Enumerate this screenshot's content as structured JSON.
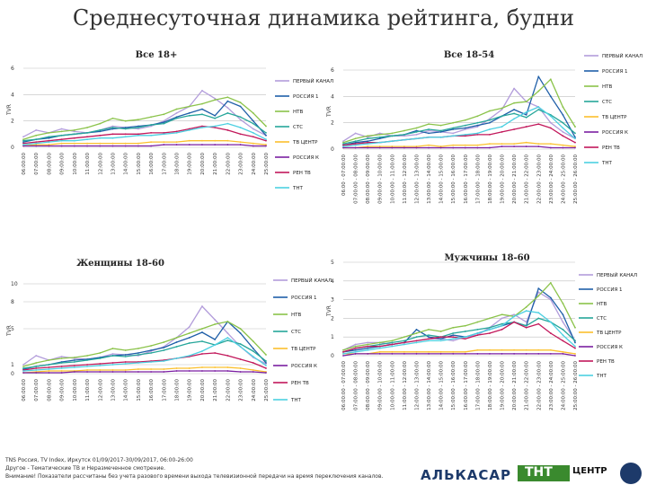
{
  "page_title": "Среднесуточная динамика рейтинга, будни",
  "colors": {
    "Первый канал": "#b39ddb",
    "Россия 1": "#1f5fa8",
    "НТВ": "#8bc34a",
    "СТС": "#26a69a",
    "ТВ Центр": "#fbc02d",
    "Россия К": "#7b1fa2",
    "Рен ТВ": "#c2185b",
    "ТНТ": "#4dd0e1"
  },
  "footer": {
    "line1": "TNS Россия, TV Index, Иркутск 01/09/2017-30/09/2017, 06:00-26:00",
    "line2": "Другое - Тематические ТВ и Неразмеченное смотрение.",
    "line3": "Внимание! Показатели рассчитаны без учета разового времени выхода телевизионной передачи на время переключения каналов."
  },
  "logos": {
    "alkasar": "АЛЬКАСАР",
    "tnt": "ТНТ",
    "centr": "ЦЕНТР"
  },
  "chart_data": [
    {
      "type": "line",
      "title": "Все 18+",
      "ylabel": "TVR",
      "ylim": [
        0,
        6
      ],
      "yticks": [
        "0",
        "2",
        "4",
        "6"
      ],
      "categories": [
        "06:00:00",
        "07:00:00",
        "08:00:00",
        "09:00:00",
        "10:00:00",
        "11:00:00",
        "12:00:00",
        "13:00:00",
        "14:00:00",
        "15:00:00",
        "16:00:00",
        "17:00:00",
        "18:00:00",
        "19:00:00",
        "20:00:00",
        "21:00:00",
        "22:00:00",
        "23:00:00",
        "24:00:00",
        "25:00:00"
      ],
      "legend": [
        "ПЕРВЫЙ КАНАЛ",
        "РОССИЯ 1",
        "НТВ",
        "СТС",
        "ТВ ЦЕНТР",
        "РОССИЯ К",
        "РЕН ТВ",
        "ТНТ"
      ],
      "series": [
        {
          "name": "Первый канал",
          "values": [
            0.8,
            1.3,
            1.1,
            1.4,
            1.2,
            1.1,
            1.3,
            1.6,
            1.5,
            1.4,
            1.6,
            2.0,
            2.6,
            3.1,
            4.3,
            3.7,
            3.0,
            2.1,
            1.4,
            0.9
          ]
        },
        {
          "name": "Россия 1",
          "values": [
            0.4,
            0.6,
            0.7,
            0.9,
            1.0,
            1.1,
            1.2,
            1.4,
            1.5,
            1.6,
            1.7,
            1.9,
            2.3,
            2.6,
            2.9,
            2.4,
            3.5,
            3.1,
            2.0,
            0.9
          ]
        },
        {
          "name": "НТВ",
          "values": [
            0.6,
            0.9,
            1.1,
            1.2,
            1.3,
            1.5,
            1.8,
            2.2,
            2.0,
            2.1,
            2.3,
            2.5,
            2.9,
            3.1,
            3.3,
            3.6,
            3.8,
            3.4,
            2.6,
            1.6
          ]
        },
        {
          "name": "СТС",
          "values": [
            0.5,
            0.6,
            0.8,
            0.9,
            1.0,
            1.1,
            1.3,
            1.5,
            1.4,
            1.5,
            1.7,
            1.8,
            2.2,
            2.4,
            2.5,
            2.2,
            2.6,
            2.3,
            1.8,
            1.1
          ]
        },
        {
          "name": "ТВ Центр",
          "values": [
            0.1,
            0.2,
            0.2,
            0.3,
            0.3,
            0.3,
            0.3,
            0.3,
            0.3,
            0.3,
            0.4,
            0.4,
            0.4,
            0.5,
            0.5,
            0.5,
            0.5,
            0.4,
            0.3,
            0.2
          ]
        },
        {
          "name": "Россия К",
          "values": [
            0.1,
            0.1,
            0.1,
            0.1,
            0.1,
            0.1,
            0.1,
            0.1,
            0.1,
            0.1,
            0.1,
            0.2,
            0.2,
            0.2,
            0.2,
            0.2,
            0.2,
            0.2,
            0.1,
            0.1
          ]
        },
        {
          "name": "Рен ТВ",
          "values": [
            0.3,
            0.4,
            0.5,
            0.6,
            0.7,
            0.8,
            0.9,
            1.0,
            1.0,
            1.0,
            1.1,
            1.1,
            1.2,
            1.4,
            1.6,
            1.5,
            1.3,
            1.0,
            0.8,
            0.5
          ]
        },
        {
          "name": "ТНТ",
          "values": [
            0.2,
            0.3,
            0.4,
            0.5,
            0.5,
            0.6,
            0.7,
            0.7,
            0.8,
            0.9,
            0.9,
            1.0,
            1.1,
            1.3,
            1.5,
            1.6,
            1.8,
            1.5,
            1.1,
            0.6
          ]
        }
      ]
    },
    {
      "type": "line",
      "title": "Все 18-54",
      "ylabel": "TVR",
      "ylim": [
        0,
        6
      ],
      "yticks": [
        "0",
        "2",
        "4",
        "6"
      ],
      "categories": [
        "06:00 - 07:00:00",
        "07:00:00 - 08:00:00",
        "08:00:00 - 09:00:00",
        "09:00:00 - 10:00:00",
        "10:00:00 - 11:00:00",
        "11:00:00 - 12:00:00",
        "12:00:00 - 13:00:00",
        "13:00:00 - 14:00:00",
        "14:00:00 - 15:00:00",
        "15:00:00 - 16:00:00",
        "16:00:00 - 17:00:00",
        "17:00:00 - 18:00:00",
        "18:00:00 - 19:00:00",
        "19:00:00 - 20:00:00",
        "20:00:00 - 21:00:00",
        "21:00:00 - 22:00:00",
        "22:00:00 - 23:00:00",
        "23:00:00 - 24:00:00",
        "24:00:00 - 25:00:00",
        "25:00:00 - 26:00:00"
      ],
      "legend": [
        "ПЕРВЫЙ КАНАЛ",
        "РОССИЯ 1",
        "НТВ",
        "СТС",
        "ТВ ЦЕНТР",
        "РОССИЯ К",
        "РЕН ТВ",
        "ТНТ"
      ],
      "series": [
        {
          "name": "Первый канал",
          "values": [
            0.6,
            1.2,
            0.9,
            1.2,
            1.0,
            1.0,
            1.1,
            1.4,
            1.3,
            1.2,
            1.5,
            1.7,
            2.3,
            3.0,
            4.6,
            3.6,
            3.2,
            2.0,
            1.3,
            0.8
          ]
        },
        {
          "name": "Россия 1",
          "values": [
            0.3,
            0.5,
            0.6,
            0.8,
            1.0,
            1.1,
            1.4,
            1.2,
            1.3,
            1.5,
            1.6,
            1.8,
            2.0,
            2.5,
            3.0,
            2.6,
            5.5,
            4.0,
            2.6,
            0.9
          ]
        },
        {
          "name": "НТВ",
          "values": [
            0.5,
            0.8,
            1.0,
            1.1,
            1.2,
            1.4,
            1.6,
            1.9,
            1.8,
            2.0,
            2.2,
            2.5,
            2.9,
            3.1,
            3.5,
            3.6,
            4.4,
            5.3,
            3.2,
            1.7
          ]
        },
        {
          "name": "СТС",
          "values": [
            0.4,
            0.6,
            0.8,
            0.9,
            1.0,
            1.1,
            1.3,
            1.5,
            1.4,
            1.6,
            1.8,
            2.0,
            2.2,
            2.5,
            2.7,
            2.4,
            3.0,
            2.6,
            2.0,
            1.2
          ]
        },
        {
          "name": "ТВ Центр",
          "values": [
            0.1,
            0.1,
            0.2,
            0.2,
            0.2,
            0.2,
            0.2,
            0.3,
            0.2,
            0.3,
            0.3,
            0.3,
            0.4,
            0.4,
            0.4,
            0.5,
            0.4,
            0.4,
            0.3,
            0.2
          ]
        },
        {
          "name": "Россия К",
          "values": [
            0.1,
            0.1,
            0.1,
            0.1,
            0.1,
            0.1,
            0.1,
            0.1,
            0.1,
            0.1,
            0.1,
            0.1,
            0.1,
            0.2,
            0.2,
            0.2,
            0.2,
            0.1,
            0.1,
            0.1
          ]
        },
        {
          "name": "Рен ТВ",
          "values": [
            0.3,
            0.4,
            0.5,
            0.5,
            0.6,
            0.7,
            0.8,
            0.9,
            0.9,
            1.0,
            1.0,
            1.1,
            1.1,
            1.3,
            1.5,
            1.7,
            1.9,
            1.6,
            1.0,
            0.5
          ]
        },
        {
          "name": "ТНТ",
          "values": [
            0.2,
            0.3,
            0.4,
            0.5,
            0.6,
            0.7,
            0.8,
            0.9,
            0.9,
            1.0,
            1.1,
            1.2,
            1.5,
            1.7,
            2.3,
            2.8,
            3.2,
            2.5,
            1.6,
            0.8
          ]
        }
      ]
    },
    {
      "type": "line",
      "title": "Женщины 18-60",
      "ylabel": "TVR",
      "ylim": [
        0,
        10
      ],
      "yticks": [
        "0",
        "1",
        "5",
        "8",
        "10"
      ],
      "categories": [
        "06:00:00",
        "07:00:00",
        "08:00:00",
        "09:00:00",
        "10:00:00",
        "11:00:00",
        "12:00:00",
        "13:00:00",
        "14:00:00",
        "15:00:00",
        "16:00:00",
        "17:00:00",
        "18:00:00",
        "19:00:00",
        "20:00:00",
        "21:00:00",
        "22:00:00",
        "23:00:00",
        "24:00:00",
        "25:00:00"
      ],
      "legend": [
        "ПЕРВЫЙ КАНАЛ",
        "РОССИЯ 1",
        "НТВ",
        "СТС",
        "ТВ ЦЕНТР",
        "РОССИЯ К",
        "РЕН ТВ",
        "ТНТ"
      ],
      "series": [
        {
          "name": "Первый канал",
          "values": [
            1.0,
            2.0,
            1.5,
            1.9,
            1.7,
            1.6,
            1.8,
            2.2,
            2.1,
            2.0,
            2.5,
            3.0,
            4.0,
            5.2,
            7.5,
            6.0,
            4.5,
            3.0,
            1.8,
            1.1
          ]
        },
        {
          "name": "Россия 1",
          "values": [
            0.5,
            0.8,
            1.0,
            1.3,
            1.5,
            1.6,
            1.8,
            2.0,
            2.1,
            2.3,
            2.6,
            2.9,
            3.5,
            4.0,
            4.6,
            3.8,
            5.8,
            4.5,
            2.8,
            1.2
          ]
        },
        {
          "name": "НТВ",
          "values": [
            0.8,
            1.2,
            1.5,
            1.7,
            1.8,
            2.0,
            2.3,
            2.8,
            2.6,
            2.8,
            3.1,
            3.5,
            4.0,
            4.5,
            5.0,
            5.5,
            5.8,
            5.0,
            3.6,
            2.1
          ]
        },
        {
          "name": "СТС",
          "values": [
            0.6,
            0.8,
            1.0,
            1.2,
            1.3,
            1.5,
            1.7,
            2.0,
            1.9,
            2.1,
            2.3,
            2.6,
            3.0,
            3.4,
            3.6,
            3.2,
            3.7,
            3.3,
            2.5,
            1.4
          ]
        },
        {
          "name": "ТВ Центр",
          "values": [
            0.1,
            0.2,
            0.3,
            0.3,
            0.3,
            0.4,
            0.4,
            0.4,
            0.4,
            0.5,
            0.5,
            0.5,
            0.6,
            0.6,
            0.7,
            0.7,
            0.7,
            0.6,
            0.4,
            0.2
          ]
        },
        {
          "name": "Россия К",
          "values": [
            0.1,
            0.1,
            0.1,
            0.1,
            0.2,
            0.2,
            0.2,
            0.2,
            0.2,
            0.2,
            0.2,
            0.2,
            0.3,
            0.3,
            0.3,
            0.3,
            0.3,
            0.2,
            0.2,
            0.1
          ]
        },
        {
          "name": "Рен ТВ",
          "values": [
            0.4,
            0.6,
            0.7,
            0.8,
            0.9,
            1.0,
            1.1,
            1.2,
            1.3,
            1.3,
            1.4,
            1.5,
            1.7,
            1.9,
            2.2,
            2.3,
            2.0,
            1.6,
            1.2,
            0.6
          ]
        },
        {
          "name": "ТНТ",
          "values": [
            0.3,
            0.4,
            0.5,
            0.6,
            0.7,
            0.8,
            0.9,
            1.0,
            1.1,
            1.2,
            1.3,
            1.4,
            1.7,
            2.0,
            2.5,
            3.2,
            4.0,
            3.0,
            1.9,
            0.9
          ]
        }
      ]
    },
    {
      "type": "line",
      "title": "Мужчины 18-60",
      "ylabel": "TVR",
      "ylim": [
        0,
        5
      ],
      "yticks": [
        "0",
        "1",
        "2",
        "3",
        "4",
        "5"
      ],
      "categories": [
        "06:00:00 - 07:00:00",
        "07:00:00 - 08:00:00",
        "08:00:00 - 09:00:00",
        "09:00:00 - 10:00:00",
        "10:00:00 - 11:00:00",
        "11:00:00 - 12:00:00",
        "12:00:00 - 13:00:00",
        "13:00:00 - 14:00:00",
        "14:00:00 - 15:00:00",
        "15:00:00 - 16:00:00",
        "16:00:00 - 17:00:00",
        "17:00:00 - 18:00:00",
        "18:00:00 - 19:00:00",
        "19:00:00 - 20:00:00",
        "20:00:00 - 21:00:00",
        "21:00:00 - 22:00:00",
        "22:00:00 - 23:00:00",
        "23:00:00 - 24:00:00",
        "24:00:00 - 25:00:00",
        "25:00:00 - 26:00:00"
      ],
      "legend": [
        "ПЕРВЫЙ КАНАЛ",
        "РОССИЯ 1",
        "НТВ",
        "СТС",
        "ТВ ЦЕНТР",
        "РОССИЯ К",
        "РЕН ТВ",
        "ТНТ"
      ],
      "series": [
        {
          "name": "Первый канал",
          "values": [
            0.3,
            0.6,
            0.7,
            0.7,
            0.6,
            0.7,
            0.8,
            0.9,
            0.9,
            0.8,
            1.0,
            1.1,
            1.5,
            2.0,
            2.2,
            1.8,
            3.4,
            3.0,
            1.8,
            0.8
          ]
        },
        {
          "name": "Россия 1",
          "values": [
            0.2,
            0.3,
            0.4,
            0.5,
            0.6,
            0.7,
            1.4,
            1.0,
            0.9,
            1.1,
            1.0,
            1.2,
            1.4,
            1.6,
            1.8,
            1.6,
            3.6,
            3.1,
            2.2,
            0.7
          ]
        },
        {
          "name": "НТВ",
          "values": [
            0.3,
            0.5,
            0.6,
            0.7,
            0.8,
            1.0,
            1.2,
            1.4,
            1.3,
            1.5,
            1.6,
            1.8,
            2.0,
            2.2,
            2.1,
            2.6,
            3.2,
            3.9,
            2.8,
            1.5
          ]
        },
        {
          "name": "СТС",
          "values": [
            0.2,
            0.4,
            0.5,
            0.6,
            0.7,
            0.8,
            1.0,
            1.1,
            1.0,
            1.2,
            1.3,
            1.4,
            1.5,
            1.7,
            1.8,
            1.6,
            2.0,
            1.8,
            1.4,
            0.8
          ]
        },
        {
          "name": "ТВ Центр",
          "values": [
            0.1,
            0.1,
            0.1,
            0.2,
            0.2,
            0.2,
            0.2,
            0.2,
            0.2,
            0.2,
            0.2,
            0.3,
            0.3,
            0.3,
            0.3,
            0.3,
            0.3,
            0.3,
            0.2,
            0.1
          ]
        },
        {
          "name": "Россия К",
          "values": [
            0.0,
            0.1,
            0.1,
            0.1,
            0.1,
            0.1,
            0.1,
            0.1,
            0.1,
            0.1,
            0.1,
            0.1,
            0.1,
            0.1,
            0.1,
            0.1,
            0.1,
            0.1,
            0.1,
            0.0
          ]
        },
        {
          "name": "Рен ТВ",
          "values": [
            0.2,
            0.4,
            0.5,
            0.5,
            0.6,
            0.7,
            0.8,
            0.9,
            1.0,
            1.0,
            0.9,
            1.1,
            1.2,
            1.4,
            1.8,
            1.5,
            1.7,
            1.2,
            0.8,
            0.4
          ]
        },
        {
          "name": "ТНТ",
          "values": [
            0.1,
            0.2,
            0.3,
            0.4,
            0.5,
            0.6,
            0.7,
            0.8,
            0.8,
            0.9,
            1.0,
            1.2,
            1.4,
            1.6,
            2.1,
            2.4,
            2.3,
            1.8,
            1.1,
            0.5
          ]
        }
      ]
    }
  ]
}
